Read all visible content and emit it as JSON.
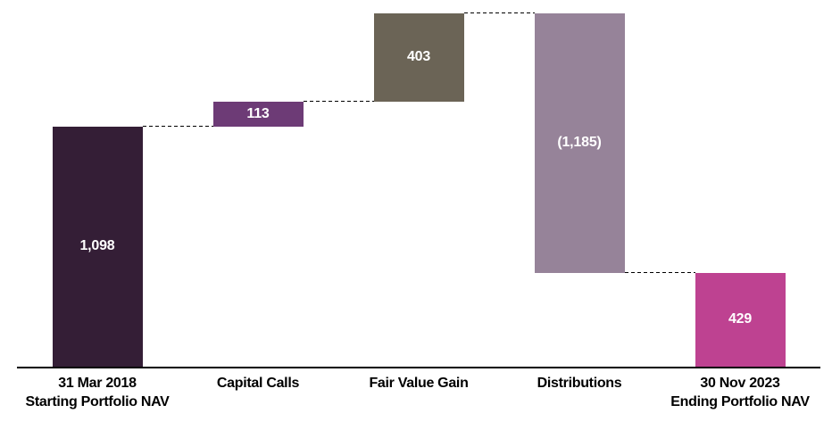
{
  "chart_data": {
    "type": "bar",
    "variant": "waterfall",
    "title": "",
    "xlabel": "",
    "ylabel": "",
    "ylim": [
      0,
      1614
    ],
    "grid": false,
    "legend": false,
    "background_color": "#ffffff",
    "axis_color": "#000000",
    "connector_color": "#000000",
    "connector_style": "dashed",
    "value_label_color": "#ffffff",
    "category_label_color": "#000000",
    "bars": [
      {
        "label_lines": [
          "31 Mar 2018",
          "Starting Portfolio NAV"
        ],
        "value": 1098,
        "display": "1,098",
        "kind": "absolute",
        "color": "#341e36"
      },
      {
        "label_lines": [
          "Capital Calls"
        ],
        "value": 113,
        "display": "113",
        "kind": "delta",
        "color": "#6d3b76"
      },
      {
        "label_lines": [
          "Fair Value Gain"
        ],
        "value": 403,
        "display": "403",
        "kind": "delta",
        "color": "#6b6456"
      },
      {
        "label_lines": [
          "Distributions"
        ],
        "value": -1185,
        "display": "(1,185)",
        "kind": "delta",
        "color": "#968399"
      },
      {
        "label_lines": [
          "30 Nov 2023",
          "Ending Portfolio NAV"
        ],
        "value": 429,
        "display": "429",
        "kind": "total",
        "color": "#be4291"
      }
    ]
  }
}
